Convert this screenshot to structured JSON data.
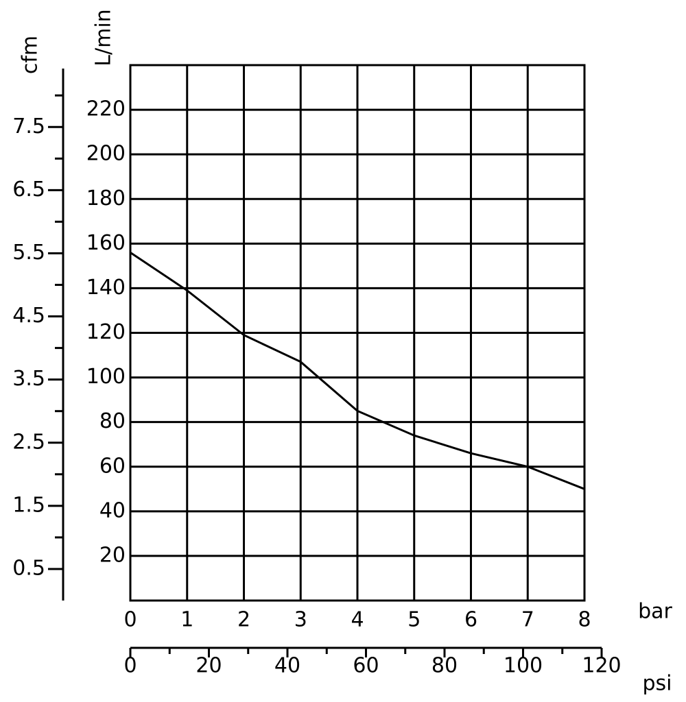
{
  "chart_data": {
    "type": "line",
    "x": [
      0,
      1,
      2,
      3,
      4,
      5,
      6,
      7,
      8
    ],
    "series": [
      {
        "name": "L/min",
        "color": "#000000",
        "values": [
          156,
          139,
          119,
          107,
          85,
          74,
          66,
          60,
          50
        ]
      }
    ],
    "xlabel": "bar",
    "xlim": [
      0,
      8
    ],
    "xticks": [
      0,
      1,
      2,
      3,
      4,
      5,
      6,
      7,
      8
    ],
    "ylabel": "L/min",
    "ylim": [
      0,
      240
    ],
    "yticks": [
      20,
      40,
      60,
      80,
      100,
      120,
      140,
      160,
      180,
      200,
      220
    ],
    "y2label": "cfm",
    "y2lim": [
      0,
      8.48
    ],
    "y2ticks": [
      0.5,
      1.5,
      2.5,
      3.5,
      4.5,
      5.5,
      6.5,
      7.5
    ],
    "y2minor_ticks": [
      1,
      2,
      3,
      4,
      5,
      6,
      7,
      8
    ],
    "x2label": "psi",
    "x2lim": [
      0,
      120
    ],
    "x2ticks": [
      0,
      20,
      40,
      60,
      80,
      100,
      120
    ],
    "x2minor_ticks": [
      10,
      30,
      50,
      70,
      90,
      110
    ],
    "grid": true
  }
}
